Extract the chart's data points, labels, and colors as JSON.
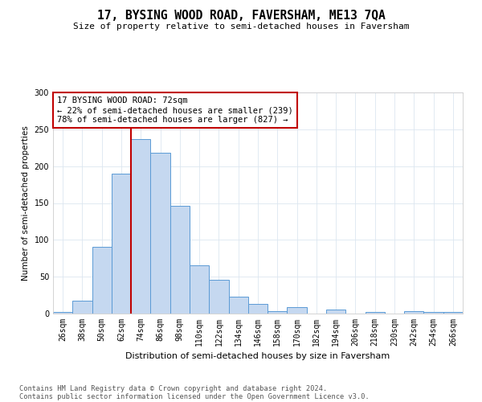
{
  "title": "17, BYSING WOOD ROAD, FAVERSHAM, ME13 7QA",
  "subtitle": "Size of property relative to semi-detached houses in Faversham",
  "xlabel": "Distribution of semi-detached houses by size in Faversham",
  "ylabel": "Number of semi-detached properties",
  "categories": [
    "26sqm",
    "38sqm",
    "50sqm",
    "62sqm",
    "74sqm",
    "86sqm",
    "98sqm",
    "110sqm",
    "122sqm",
    "134sqm",
    "146sqm",
    "158sqm",
    "170sqm",
    "182sqm",
    "194sqm",
    "206sqm",
    "218sqm",
    "230sqm",
    "242sqm",
    "254sqm",
    "266sqm"
  ],
  "values": [
    2,
    17,
    91,
    190,
    237,
    218,
    146,
    66,
    46,
    23,
    13,
    3,
    9,
    0,
    6,
    0,
    2,
    0,
    3,
    2,
    2
  ],
  "bar_color": "#c5d8f0",
  "bar_edge_color": "#5b9bd5",
  "vline_color": "#c00000",
  "annotation_line1": "17 BYSING WOOD ROAD: 72sqm",
  "annotation_line2": "← 22% of semi-detached houses are smaller (239)",
  "annotation_line3": "78% of semi-detached houses are larger (827) →",
  "annotation_box_color": "#ffffff",
  "annotation_box_edge": "#c00000",
  "ylim": [
    0,
    300
  ],
  "yticks": [
    0,
    50,
    100,
    150,
    200,
    250,
    300
  ],
  "footer_line1": "Contains HM Land Registry data © Crown copyright and database right 2024.",
  "footer_line2": "Contains public sector information licensed under the Open Government Licence v3.0.",
  "bg_color": "#ffffff",
  "grid_color": "#dce6f0",
  "title_fontsize": 10.5,
  "subtitle_fontsize": 8,
  "tick_fontsize": 7,
  "ylabel_fontsize": 7.5,
  "xlabel_fontsize": 8
}
